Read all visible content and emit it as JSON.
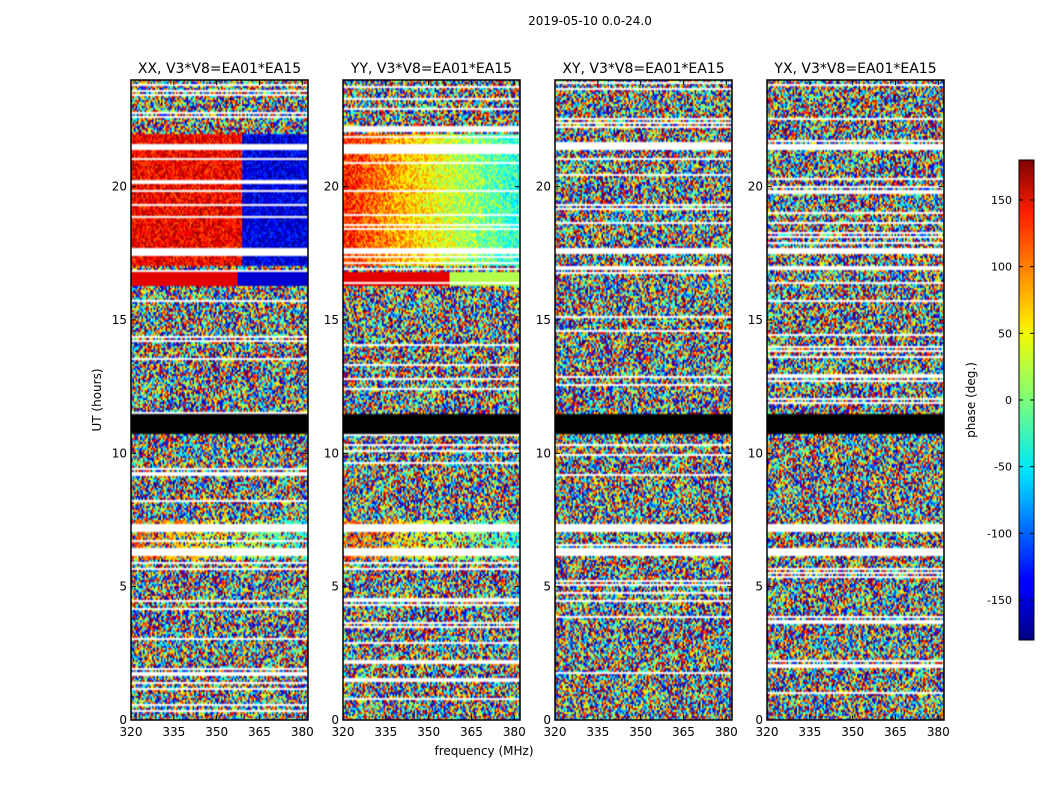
{
  "figure": {
    "suptitle": "2019-05-10 0.0-24.0"
  },
  "chart_data": {
    "type": "heatmap",
    "suptitle": "2019-05-10 0.0-24.0",
    "xlabel": "frequency (MHz)",
    "ylabel": "UT (hours)",
    "xlim": [
      320,
      382
    ],
    "ylim": [
      0,
      24
    ],
    "xticks": [
      320,
      335,
      350,
      365,
      380
    ],
    "yticks": [
      0,
      5,
      10,
      15,
      20
    ],
    "panels": [
      {
        "title": "XX, V3*V8=EA01*EA15",
        "pol": "XX"
      },
      {
        "title": "YY, V3*V8=EA01*EA15",
        "pol": "YY"
      },
      {
        "title": "XY, V3*V8=EA01*EA15",
        "pol": "XY"
      },
      {
        "title": "YX, V3*V8=EA01*EA15",
        "pol": "YX"
      }
    ],
    "colorbar": {
      "label": "phase (deg.)",
      "range": [
        -180,
        180
      ],
      "ticks": [
        150,
        100,
        50,
        0,
        -50,
        -100,
        -150
      ],
      "colormap": "jet"
    },
    "masked_intervals_hours": [
      [
        10.75,
        11.45
      ]
    ],
    "flagged_rows_hours": [
      21.5,
      17.6,
      7.2,
      6.3
    ],
    "coherent_bands_hours": [
      [
        17.0,
        22.0
      ],
      [
        16.3,
        16.8
      ],
      [
        6.0,
        7.5
      ]
    ]
  }
}
